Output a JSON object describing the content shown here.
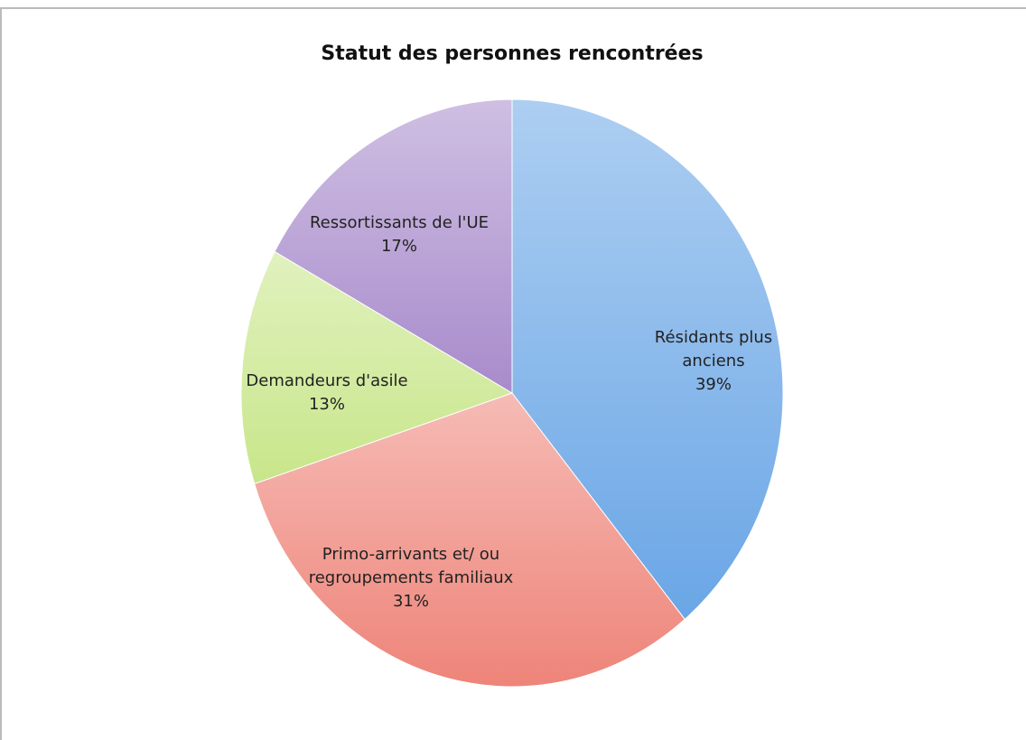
{
  "chart_data": {
    "type": "pie",
    "title": "Statut des personnes rencontrées",
    "categories": [
      "Résidants plus anciens",
      "Primo-arrivants et/ ou regroupements familiaux",
      "Demandeurs d'asile",
      "Ressortissants de l'UE"
    ],
    "values": [
      39,
      31,
      13,
      17
    ],
    "value_labels": [
      "39%",
      "31%",
      "13%",
      "17%"
    ],
    "colors": [
      "#6aa6e6",
      "#ee8479",
      "#c8e68a",
      "#a88bcb"
    ]
  }
}
